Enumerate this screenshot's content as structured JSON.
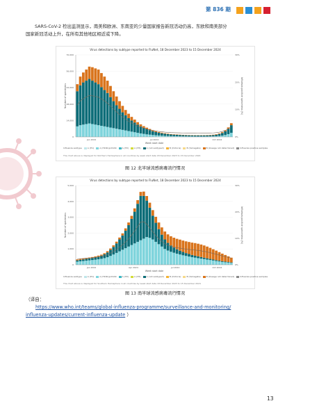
{
  "header": {
    "issue": "第 836 期",
    "squares": [
      "#f4a21d",
      "#2a8fd6",
      "#f4a21d",
      "#d62030"
    ]
  },
  "body": {
    "paragraph1": "SARS-CoV-2 检出监测显示，南美和欧洲、东南亚的少量国家报告新冠活动仍高，东欧和南美部分",
    "paragraph2": "国家新冠活动上升，在所有其他地区相近或下降。"
  },
  "figure12": {
    "title": "Virus detections by subtype reported to FluNet, 18 December 2023 to 15 December 2024",
    "ylabel_left": "Number of specimens",
    "ylabel_right": "Influenza positive specimens (%)",
    "xlabel": "Week start date",
    "note": "The chart above is displayed for Northern Hemisphere in all countries by week start date 18 December 2023 to 15 December 2024",
    "caption": "图 12   北半球流感病毒流行情况",
    "ymax": 70000
  },
  "figure13": {
    "title": "Virus detections by subtype reported to FluNet, 18 December 2023 to 15 December 2024",
    "ylabel_left": "Number of specimens",
    "ylabel_right": "Influenza positive specimens (%)",
    "xlabel": "Week start date",
    "note": "The chart above is displayed for Southern Hemisphere in all countries by week start date 18 December 2023 to 15 December 2024",
    "caption": "图 13   南半球流感病毒流行情况",
    "ymax": 5000
  },
  "legend": {
    "title": "Influenza subtype",
    "items": [
      {
        "label": "A (H1)",
        "color": "#bfe6ea"
      },
      {
        "label": "A (H1N1)pdm09",
        "color": "#7fd4dc"
      },
      {
        "label": "A (H3)",
        "color": "#3fb8c4"
      },
      {
        "label": "A (H5)",
        "color": "#d3dc3a"
      },
      {
        "label": "A (not subtyped)",
        "color": "#0d6d78"
      },
      {
        "label": "B (Victoria)",
        "color": "#f2b233"
      },
      {
        "label": "B (Yamagata)",
        "color": "#f6d98a"
      },
      {
        "label": "B (lineage not determined)",
        "color": "#d9741c"
      },
      {
        "label": "Influenza positive samples",
        "color": "#888888"
      }
    ]
  },
  "source": {
    "prefix": "（译自：",
    "link_line1": "https://www.who.int/teams/global-influenza-programme/surveillance-and-monitoring/",
    "link_line2": "influenza-updates/current-influenza-update",
    "suffix": " ）"
  },
  "page_number": "13",
  "chart_data": [
    {
      "type": "bar",
      "stacked": true,
      "title": "Virus detections by subtype reported to FluNet, 18 December 2023 to 15 December 2024",
      "xlabel": "Week start date",
      "ylabel": "Number of specimens",
      "ylim": [
        0,
        70000
      ],
      "x_ticks": [
        "Jan 2024",
        "Jul 2024",
        "Oct 2024"
      ],
      "series": [
        {
          "name": "A (H1N1)pdm09",
          "values": [
            9000,
            10000,
            10500,
            11000,
            11500,
            11000,
            10500,
            10000,
            9500,
            9000,
            8500,
            8000,
            7500,
            7000,
            6500,
            6000,
            5500,
            5000,
            4500,
            4000,
            3500,
            3000,
            2600,
            2200,
            1900,
            1600,
            1400,
            1200,
            1050,
            900,
            800,
            700,
            650,
            600,
            550,
            500,
            480,
            460,
            440,
            420,
            400,
            400,
            400,
            420,
            450,
            500,
            600,
            800,
            1100,
            1600,
            2400,
            3500
          ]
        },
        {
          "name": "A (not subtyped)",
          "values": [
            30000,
            34000,
            36000,
            37000,
            38000,
            37000,
            36000,
            35000,
            33000,
            31000,
            29000,
            26000,
            23000,
            20000,
            17500,
            15000,
            13000,
            11000,
            9500,
            8200,
            7000,
            6000,
            5200,
            4500,
            3900,
            3300,
            2800,
            2400,
            2100,
            1800,
            1600,
            1400,
            1300,
            1200,
            1100,
            1000,
            950,
            900,
            880,
            860,
            850,
            850,
            870,
            900,
            950,
            1050,
            1300,
            1700,
            2300,
            3200,
            4500,
            6500
          ]
        },
        {
          "name": "B (lineage not determined)",
          "values": [
            6000,
            7500,
            8500,
            9500,
            10500,
            11500,
            12000,
            12500,
            12000,
            11500,
            10500,
            9500,
            8500,
            7500,
            6500,
            5500,
            4500,
            3800,
            3100,
            2600,
            2100,
            1700,
            1400,
            1200,
            1000,
            850,
            700,
            600,
            520,
            450,
            400,
            350,
            320,
            300,
            280,
            260,
            250,
            240,
            240,
            240,
            240,
            250,
            260,
            280,
            310,
            350,
            420,
            520,
            680,
            900,
            1200,
            1700
          ]
        }
      ]
    },
    {
      "type": "bar",
      "stacked": true,
      "title": "Virus detections by subtype reported to FluNet, 18 December 2023 to 15 December 2024",
      "xlabel": "Week start date",
      "ylabel": "Number of specimens",
      "ylim": [
        0,
        5000
      ],
      "x_ticks": [
        "Jan 2024",
        "Apr 2024",
        "Jul 2024",
        "Oct 2024"
      ],
      "series": [
        {
          "name": "A (H1N1)pdm09",
          "values": [
            200,
            220,
            240,
            260,
            280,
            300,
            320,
            350,
            380,
            420,
            480,
            560,
            650,
            750,
            850,
            950,
            1050,
            1150,
            1250,
            1350,
            1450,
            1550,
            1650,
            1750,
            1700,
            1600,
            1450,
            1300,
            1150,
            1000,
            900,
            820,
            760,
            700,
            650,
            600,
            560,
            520,
            480,
            450,
            420,
            390,
            360,
            330,
            300,
            270,
            240,
            210,
            180,
            160,
            140,
            120
          ]
        },
        {
          "name": "A (not subtyped)",
          "values": [
            80,
            90,
            100,
            110,
            120,
            130,
            150,
            170,
            200,
            240,
            300,
            380,
            480,
            600,
            750,
            900,
            1100,
            1350,
            1650,
            2000,
            2400,
            2800,
            2700,
            2300,
            1900,
            1500,
            1200,
            950,
            750,
            600,
            480,
            400,
            330,
            280,
            240,
            210,
            180,
            160,
            140,
            120,
            110,
            100,
            90,
            80,
            70,
            60,
            55,
            50,
            45,
            40,
            35,
            30
          ]
        },
        {
          "name": "B (lineage not determined)",
          "values": [
            60,
            60,
            60,
            60,
            60,
            60,
            60,
            60,
            60,
            70,
            80,
            90,
            100,
            110,
            120,
            130,
            150,
            170,
            190,
            210,
            230,
            250,
            270,
            290,
            320,
            350,
            380,
            420,
            460,
            500,
            540,
            580,
            620,
            660,
            700,
            720,
            740,
            760,
            780,
            800,
            800,
            790,
            770,
            740,
            700,
            650,
            600,
            540,
            480,
            420,
            360,
            300
          ]
        }
      ]
    }
  ]
}
